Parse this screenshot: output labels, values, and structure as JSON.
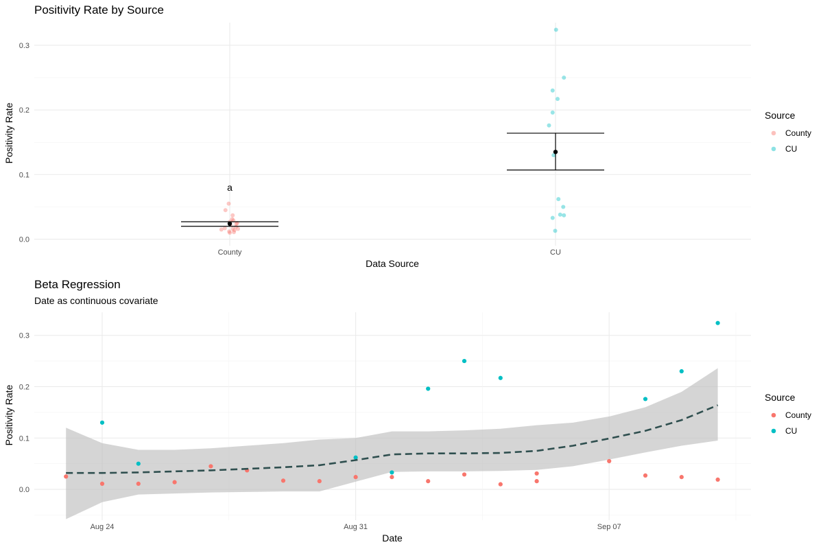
{
  "chart_data": [
    {
      "type": "scatter",
      "title": "Positivity Rate by Source",
      "xlabel": "Data Source",
      "ylabel": "Positivity Rate",
      "categories": [
        "County",
        "CU"
      ],
      "ylim": [
        -0.01,
        0.335
      ],
      "y_ticks": [
        "0.0",
        "0.1",
        "0.2",
        "0.3"
      ],
      "grid": true,
      "legend": {
        "title": "Source",
        "position": "right",
        "entries": [
          "County",
          "CU"
        ]
      },
      "annotation": {
        "text": "a",
        "category": "County",
        "y": 0.08
      },
      "points": [
        {
          "series": "County",
          "y": 0.055,
          "jitter": -0.06
        },
        {
          "series": "County",
          "y": 0.045,
          "jitter": -0.25
        },
        {
          "series": "County",
          "y": 0.037,
          "jitter": 0.17
        },
        {
          "series": "County",
          "y": 0.031,
          "jitter": 0.14
        },
        {
          "series": "County",
          "y": 0.029,
          "jitter": 0.21
        },
        {
          "series": "County",
          "y": 0.027,
          "jitter": 0.01
        },
        {
          "series": "County",
          "y": 0.025,
          "jitter": 0.44
        },
        {
          "series": "County",
          "y": 0.024,
          "jitter": 0.38
        },
        {
          "series": "County",
          "y": 0.022,
          "jitter": 0.03
        },
        {
          "series": "County",
          "y": 0.019,
          "jitter": 0.36
        },
        {
          "series": "County",
          "y": 0.017,
          "jitter": -0.29
        },
        {
          "series": "County",
          "y": 0.016,
          "jitter": 0.17
        },
        {
          "series": "County",
          "y": 0.016,
          "jitter": 0.48
        },
        {
          "series": "County",
          "y": 0.015,
          "jitter": -0.49
        },
        {
          "series": "County",
          "y": 0.014,
          "jitter": 0.27
        },
        {
          "series": "County",
          "y": 0.012,
          "jitter": -0.03
        },
        {
          "series": "County",
          "y": 0.011,
          "jitter": 0.24
        },
        {
          "series": "County",
          "y": 0.01,
          "jitter": 0.0
        },
        {
          "series": "CU",
          "y": 0.324,
          "jitter": 0.03
        },
        {
          "series": "CU",
          "y": 0.25,
          "jitter": 0.49
        },
        {
          "series": "CU",
          "y": 0.23,
          "jitter": -0.17
        },
        {
          "series": "CU",
          "y": 0.217,
          "jitter": 0.12
        },
        {
          "series": "CU",
          "y": 0.196,
          "jitter": -0.17
        },
        {
          "series": "CU",
          "y": 0.176,
          "jitter": -0.38
        },
        {
          "series": "CU",
          "y": 0.13,
          "jitter": -0.11
        },
        {
          "series": "CU",
          "y": 0.062,
          "jitter": 0.17
        },
        {
          "series": "CU",
          "y": 0.05,
          "jitter": 0.45
        },
        {
          "series": "CU",
          "y": 0.038,
          "jitter": 0.27
        },
        {
          "series": "CU",
          "y": 0.037,
          "jitter": 0.49
        },
        {
          "series": "CU",
          "y": 0.033,
          "jitter": -0.17
        },
        {
          "series": "CU",
          "y": 0.013,
          "jitter": -0.02
        }
      ],
      "summary": [
        {
          "category": "County",
          "mean": 0.024,
          "lower": 0.02,
          "upper": 0.027
        },
        {
          "category": "CU",
          "mean": 0.135,
          "lower": 0.107,
          "upper": 0.164
        }
      ]
    },
    {
      "type": "scatter",
      "title": "Beta Regression",
      "subtitle": "Date as continuous covariate",
      "xlabel": "Date",
      "ylabel": "Positivity Rate",
      "xlim": [
        "2020-08-21",
        "2020-09-11"
      ],
      "ylim": [
        -0.06,
        0.345
      ],
      "x_ticks": [
        {
          "date": "2020-08-24",
          "label": "Aug 24"
        },
        {
          "date": "2020-08-31",
          "label": "Aug 31"
        },
        {
          "date": "2020-09-07",
          "label": "Sep 07"
        }
      ],
      "y_ticks": [
        "0.0",
        "0.1",
        "0.2",
        "0.3"
      ],
      "grid": true,
      "legend": {
        "title": "Source",
        "position": "right",
        "entries": [
          "County",
          "CU"
        ]
      },
      "series": [
        {
          "name": "County",
          "points": [
            {
              "x": "2020-08-23",
              "y": 0.025
            },
            {
              "x": "2020-08-24",
              "y": 0.011
            },
            {
              "x": "2020-08-25",
              "y": 0.011
            },
            {
              "x": "2020-08-26",
              "y": 0.014
            },
            {
              "x": "2020-08-27",
              "y": 0.045
            },
            {
              "x": "2020-08-28",
              "y": 0.037
            },
            {
              "x": "2020-08-29",
              "y": 0.017
            },
            {
              "x": "2020-08-30",
              "y": 0.016
            },
            {
              "x": "2020-08-31",
              "y": 0.024
            },
            {
              "x": "2020-09-01",
              "y": 0.024
            },
            {
              "x": "2020-09-02",
              "y": 0.016
            },
            {
              "x": "2020-09-03",
              "y": 0.029
            },
            {
              "x": "2020-09-04",
              "y": 0.01
            },
            {
              "x": "2020-09-05",
              "y": 0.031
            },
            {
              "x": "2020-09-05",
              "y": 0.016
            },
            {
              "x": "2020-09-07",
              "y": 0.055
            },
            {
              "x": "2020-09-08",
              "y": 0.027
            },
            {
              "x": "2020-09-09",
              "y": 0.024
            },
            {
              "x": "2020-09-10",
              "y": 0.019
            }
          ]
        },
        {
          "name": "CU",
          "points": [
            {
              "x": "2020-08-24",
              "y": 0.13
            },
            {
              "x": "2020-08-25",
              "y": 0.05
            },
            {
              "x": "2020-08-31",
              "y": 0.062
            },
            {
              "x": "2020-09-01",
              "y": 0.033
            },
            {
              "x": "2020-09-02",
              "y": 0.196
            },
            {
              "x": "2020-09-03",
              "y": 0.25
            },
            {
              "x": "2020-09-04",
              "y": 0.217
            },
            {
              "x": "2020-09-08",
              "y": 0.176
            },
            {
              "x": "2020-09-09",
              "y": 0.23
            },
            {
              "x": "2020-09-10",
              "y": 0.324
            }
          ]
        }
      ],
      "fit": {
        "line_style": "dashed",
        "points": [
          {
            "x": "2020-08-23",
            "y": 0.032,
            "lower": -0.058,
            "upper": 0.12
          },
          {
            "x": "2020-08-24",
            "y": 0.032,
            "lower": -0.025,
            "upper": 0.09
          },
          {
            "x": "2020-08-25",
            "y": 0.033,
            "lower": -0.01,
            "upper": 0.077
          },
          {
            "x": "2020-08-26",
            "y": 0.035,
            "lower": -0.008,
            "upper": 0.077
          },
          {
            "x": "2020-08-27",
            "y": 0.037,
            "lower": -0.006,
            "upper": 0.08
          },
          {
            "x": "2020-08-28",
            "y": 0.04,
            "lower": -0.005,
            "upper": 0.085
          },
          {
            "x": "2020-08-29",
            "y": 0.043,
            "lower": -0.004,
            "upper": 0.09
          },
          {
            "x": "2020-08-30",
            "y": 0.047,
            "lower": -0.004,
            "upper": 0.097
          },
          {
            "x": "2020-08-31",
            "y": 0.057,
            "lower": 0.015,
            "upper": 0.1
          },
          {
            "x": "2020-09-01",
            "y": 0.068,
            "lower": 0.034,
            "upper": 0.113
          },
          {
            "x": "2020-09-02",
            "y": 0.07,
            "lower": 0.035,
            "upper": 0.113
          },
          {
            "x": "2020-09-03",
            "y": 0.07,
            "lower": 0.035,
            "upper": 0.115
          },
          {
            "x": "2020-09-04",
            "y": 0.071,
            "lower": 0.036,
            "upper": 0.118
          },
          {
            "x": "2020-09-05",
            "y": 0.075,
            "lower": 0.038,
            "upper": 0.125
          },
          {
            "x": "2020-09-06",
            "y": 0.085,
            "lower": 0.045,
            "upper": 0.13
          },
          {
            "x": "2020-09-07",
            "y": 0.099,
            "lower": 0.058,
            "upper": 0.142
          },
          {
            "x": "2020-09-08",
            "y": 0.114,
            "lower": 0.072,
            "upper": 0.16
          },
          {
            "x": "2020-09-09",
            "y": 0.135,
            "lower": 0.085,
            "upper": 0.19
          },
          {
            "x": "2020-09-10",
            "y": 0.164,
            "lower": 0.095,
            "upper": 0.236
          }
        ]
      }
    }
  ],
  "colors": {
    "county": "#F8766D",
    "cu": "#00BFC4",
    "fit_line": "#2F4F4F",
    "ribbon": "#BEBEBE",
    "grid": "#EBEBEB"
  }
}
